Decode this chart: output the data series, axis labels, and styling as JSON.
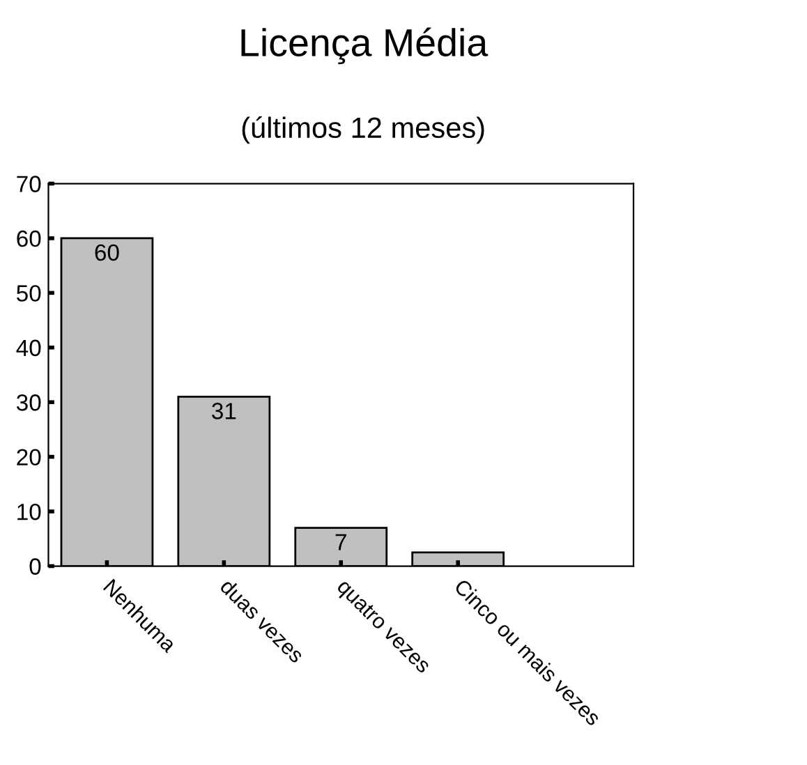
{
  "chart_data": {
    "type": "bar",
    "title": "Licença Média",
    "subtitle": "(últimos 12 meses)",
    "categories": [
      "Nenhuma",
      "duas vezes",
      "quatro vezes",
      "Cinco ou mais vezes"
    ],
    "values": [
      60,
      31,
      7,
      2.5
    ],
    "value_labels": [
      "60",
      "31",
      "7",
      null
    ],
    "color": "#c0c0c0",
    "ylim": [
      0,
      70
    ],
    "yticks": [
      0,
      10,
      20,
      30,
      40,
      50,
      60,
      70
    ],
    "grid": false,
    "legend": false
  }
}
